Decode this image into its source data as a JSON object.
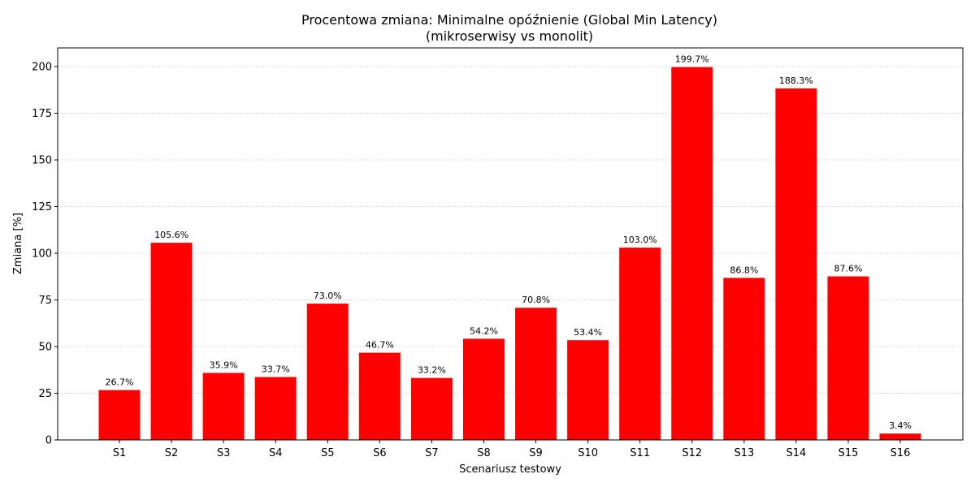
{
  "chart_data": {
    "type": "bar",
    "title": "Procentowa zmiana: Minimalne opóźnienie (Global Min Latency)",
    "subtitle": "(mikroserwisy vs monolit)",
    "xlabel": "Scenariusz testowy",
    "ylabel": "Zmiana [%]",
    "categories": [
      "S1",
      "S2",
      "S3",
      "S4",
      "S5",
      "S6",
      "S7",
      "S8",
      "S9",
      "S10",
      "S11",
      "S12",
      "S13",
      "S14",
      "S15",
      "S16"
    ],
    "values": [
      26.7,
      105.6,
      35.9,
      33.7,
      73.0,
      46.7,
      33.2,
      54.2,
      70.8,
      53.4,
      103.0,
      199.7,
      86.8,
      188.3,
      87.6,
      3.4
    ],
    "value_labels": [
      "26.7%",
      "105.6%",
      "35.9%",
      "33.7%",
      "73.0%",
      "46.7%",
      "33.2%",
      "54.2%",
      "70.8%",
      "53.4%",
      "103.0%",
      "199.7%",
      "86.8%",
      "188.3%",
      "87.6%",
      "3.4%"
    ],
    "ylim": [
      0,
      210
    ],
    "yticks": [
      0,
      25,
      50,
      75,
      100,
      125,
      150,
      175,
      200
    ],
    "bar_color": "#ff0000",
    "grid": "y-dotted",
    "legend": "none"
  }
}
